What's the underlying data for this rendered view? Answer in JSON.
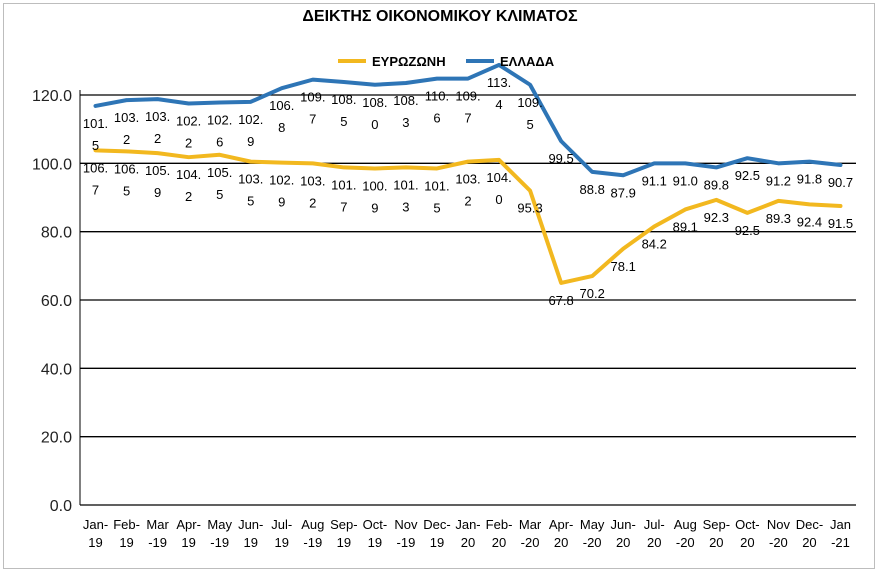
{
  "chart_data": {
    "type": "line",
    "title": "ΔΕΙΚΤΗΣ ΟΙΚΟΝΟΜΙΚΟΥ ΚΛΙΜΑΤΟΣ",
    "xlabel": "",
    "ylabel": "",
    "ylim": [
      0,
      120
    ],
    "yticks": [
      "0.0",
      "20.0",
      "40.0",
      "60.0",
      "80.0",
      "100.0",
      "120.0"
    ],
    "grid": true,
    "legend_position": "top",
    "categories": [
      [
        "Jan-",
        "19"
      ],
      [
        "Feb-",
        "19"
      ],
      [
        "Mar",
        "-19"
      ],
      [
        "Apr-",
        "19"
      ],
      [
        "May",
        "-19"
      ],
      [
        "Jun-",
        "19"
      ],
      [
        "Jul-",
        "19"
      ],
      [
        "Aug",
        "-19"
      ],
      [
        "Sep-",
        "19"
      ],
      [
        "Oct-",
        "19"
      ],
      [
        "Nov",
        "-19"
      ],
      [
        "Dec-",
        "19"
      ],
      [
        "Jan-",
        "20"
      ],
      [
        "Feb-",
        "20"
      ],
      [
        "Mar",
        "-20"
      ],
      [
        "Apr-",
        "20"
      ],
      [
        "May",
        "-20"
      ],
      [
        "Jun-",
        "20"
      ],
      [
        "Jul-",
        "20"
      ],
      [
        "Aug",
        "-20"
      ],
      [
        "Sep-",
        "20"
      ],
      [
        "Oct-",
        "20"
      ],
      [
        "Nov",
        "-20"
      ],
      [
        "Dec-",
        "20"
      ],
      [
        "Jan",
        "-21"
      ]
    ],
    "series": [
      {
        "name": "ΕΥΡΩΖΩΝΗ",
        "color": "#f2b81f",
        "values": [
          103.8,
          103.5,
          103.0,
          101.8,
          102.5,
          100.5,
          100.2,
          100.0,
          98.8,
          98.5,
          98.8,
          98.5,
          100.5,
          101.0,
          92.0,
          65.0,
          67.0,
          75.0,
          81.5,
          86.5,
          89.3,
          85.5,
          89.0,
          88.0,
          87.5
        ],
        "labels": [
          [
            "106.",
            "7"
          ],
          [
            "106.",
            "5"
          ],
          [
            "105.",
            "9"
          ],
          [
            "104.",
            "2"
          ],
          [
            "105.",
            "5"
          ],
          [
            "103.",
            "5"
          ],
          [
            "102.",
            "9"
          ],
          [
            "103.",
            "2"
          ],
          [
            "101.",
            "7"
          ],
          [
            "100.",
            "9"
          ],
          [
            "101.",
            "3"
          ],
          [
            "101.",
            "5"
          ],
          [
            "103.",
            "2"
          ],
          [
            "104.",
            "0"
          ],
          [
            "95.3"
          ],
          [
            "67.8"
          ],
          [
            "70.2"
          ],
          [
            "78.1"
          ],
          [
            "84.2"
          ],
          [
            "89.1"
          ],
          [
            "92.3"
          ],
          [
            "92.5"
          ],
          [
            "89.3"
          ],
          [
            "92.4"
          ],
          [
            "91.5"
          ]
        ]
      },
      {
        "name": "ΕΛΛΑΔΑ",
        "color": "#2e75b6",
        "values": [
          116.8,
          118.5,
          118.8,
          117.5,
          117.8,
          118.0,
          122.0,
          124.5,
          123.8,
          123.0,
          123.5,
          124.8,
          124.8,
          128.8,
          123.0,
          106.5,
          97.5,
          96.5,
          100.0,
          100.0,
          98.8,
          101.5,
          100.0,
          100.5,
          99.5
        ],
        "labels": [
          [
            "101.",
            "5"
          ],
          [
            "103.",
            "2"
          ],
          [
            "103.",
            "2"
          ],
          [
            "102.",
            "2"
          ],
          [
            "102.",
            "6"
          ],
          [
            "102.",
            "9"
          ],
          [
            "106.",
            "8"
          ],
          [
            "109.",
            "7"
          ],
          [
            "108.",
            "5"
          ],
          [
            "108.",
            "0"
          ],
          [
            "108.",
            "3"
          ],
          [
            "110.",
            "6"
          ],
          [
            "109.",
            "7"
          ],
          [
            "113.",
            "4"
          ],
          [
            "109.",
            "5"
          ],
          [
            "99.5"
          ],
          [
            "88.8"
          ],
          [
            "87.9"
          ],
          [
            "91.1"
          ],
          [
            "91.0"
          ],
          [
            "89.8"
          ],
          [
            "92.5"
          ],
          [
            "91.2"
          ],
          [
            "91.8"
          ],
          [
            "90.7"
          ]
        ]
      }
    ]
  }
}
